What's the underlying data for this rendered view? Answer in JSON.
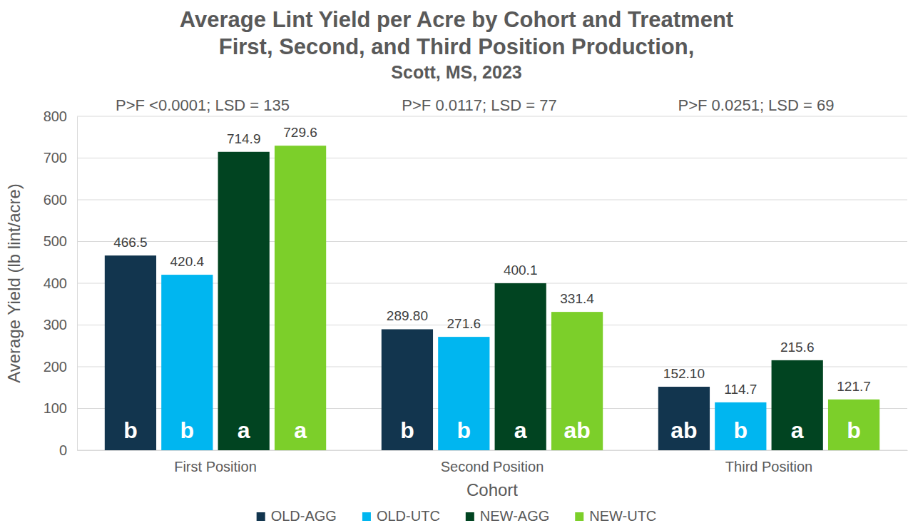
{
  "chart_data": {
    "type": "bar",
    "title": [
      "Average Lint Yield per Acre by Cohort and Treatment",
      "First, Second, and Third Position Production,"
    ],
    "subtitle": "Scott, MS, 2023",
    "x_label": "Cohort",
    "y_label": "Average Yield (lb lint/acre)",
    "categories": [
      "First Position",
      "Second Position",
      "Third Position"
    ],
    "annotations": [
      "P>F <0.0001; LSD = 135",
      "P>F 0.0117; LSD = 77",
      "P>F 0.0251; LSD = 69"
    ],
    "series": [
      {
        "name": "OLD-AGG",
        "color": "#12354e",
        "values": [
          466.5,
          289.8,
          152.1
        ],
        "value_labels": [
          "466.5",
          "289.80",
          "152.10"
        ],
        "letters": [
          "b",
          "b",
          "ab"
        ]
      },
      {
        "name": "OLD-UTC",
        "color": "#00b6f0",
        "values": [
          420.4,
          271.6,
          114.7
        ],
        "value_labels": [
          "420.4",
          "271.6",
          "114.7"
        ],
        "letters": [
          "b",
          "b",
          "b"
        ]
      },
      {
        "name": "NEW-AGG",
        "color": "#014421",
        "values": [
          714.9,
          400.1,
          215.6
        ],
        "value_labels": [
          "714.9",
          "400.1",
          "215.6"
        ],
        "letters": [
          "a",
          "a",
          "a"
        ]
      },
      {
        "name": "NEW-UTC",
        "color": "#7ccf2a",
        "values": [
          729.6,
          331.4,
          121.7
        ],
        "value_labels": [
          "729.6",
          "331.4",
          "121.7"
        ],
        "letters": [
          "a",
          "ab",
          "b"
        ]
      }
    ],
    "ylim": [
      0,
      800
    ],
    "yticks": [
      0,
      100,
      200,
      300,
      400,
      500,
      600,
      700,
      800
    ],
    "grid": true,
    "data_labels": true,
    "legend": "bottom"
  }
}
